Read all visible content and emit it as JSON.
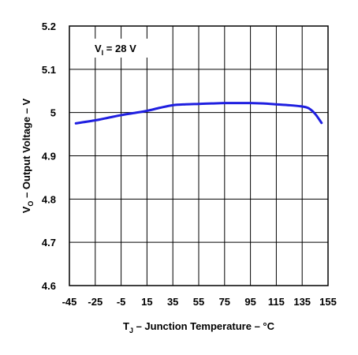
{
  "chart_data": {
    "type": "line",
    "annotation": {
      "main": "V",
      "sub": "I",
      "rest": " = 28 V"
    },
    "xlabel": {
      "main": "T",
      "sub": "J",
      "rest": " – Junction Temperature – °C"
    },
    "ylabel": {
      "main": "V",
      "sub": "O",
      "rest": " – Output Voltage – V"
    },
    "xlim": [
      -45,
      155
    ],
    "ylim": [
      4.6,
      5.2
    ],
    "x_ticks": [
      -45,
      -25,
      -5,
      15,
      35,
      55,
      75,
      95,
      115,
      135,
      155
    ],
    "x_tick_labels": [
      "-45",
      "-25",
      "-5",
      "15",
      "35",
      "55",
      "75",
      "95",
      "115",
      "135",
      "155"
    ],
    "y_ticks": [
      4.6,
      4.7,
      4.8,
      4.9,
      5.0,
      5.1,
      5.2
    ],
    "y_tick_labels": [
      "4.6",
      "4.7",
      "4.8",
      "4.9",
      "5",
      "5.1",
      "5.2"
    ],
    "grid": true,
    "line_color": "#1f1fe0",
    "series": [
      {
        "x": [
          -40,
          -25,
          -15,
          -5,
          5,
          15,
          25,
          35,
          45,
          55,
          65,
          75,
          85,
          95,
          105,
          115,
          125,
          135,
          140,
          145,
          150
        ],
        "y": [
          4.975,
          4.982,
          4.988,
          4.994,
          4.999,
          5.004,
          5.011,
          5.017,
          5.019,
          5.02,
          5.021,
          5.022,
          5.022,
          5.022,
          5.021,
          5.019,
          5.017,
          5.014,
          5.01,
          4.997,
          4.976
        ]
      }
    ]
  }
}
